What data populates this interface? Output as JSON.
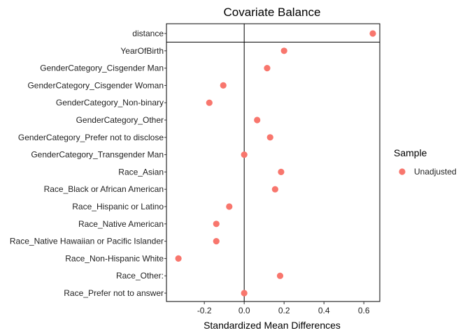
{
  "chart_data": {
    "type": "scatter",
    "title": "Covariate Balance",
    "xlabel": "Standardized Mean Differences",
    "ylabel": "",
    "xlim": [
      -0.39,
      0.68
    ],
    "xticks": [
      -0.2,
      0.0,
      0.2,
      0.4,
      0.6
    ],
    "xtick_labels": [
      "-0.2",
      "0.0",
      "0.2",
      "0.4",
      "0.6"
    ],
    "reference_line_x": 0,
    "grid": false,
    "legend": {
      "title": "Sample",
      "placement": "right",
      "entries": [
        {
          "label": "Unadjusted",
          "color": "#F8766D"
        }
      ]
    },
    "series": [
      {
        "name": "Unadjusted",
        "color": "#F8766D",
        "points": [
          {
            "category": "distance",
            "value": 0.645
          },
          {
            "category": "YearOfBirth",
            "value": 0.2
          },
          {
            "category": "GenderCategory_Cisgender Man",
            "value": 0.115
          },
          {
            "category": "GenderCategory_Cisgender Woman",
            "value": -0.105
          },
          {
            "category": "GenderCategory_Non-binary",
            "value": -0.175
          },
          {
            "category": "GenderCategory_Other",
            "value": 0.065
          },
          {
            "category": "GenderCategory_Prefer not to disclose",
            "value": 0.13
          },
          {
            "category": "GenderCategory_Transgender Man",
            "value": 0.0
          },
          {
            "category": "Race_Asian",
            "value": 0.185
          },
          {
            "category": "Race_Black or African American",
            "value": 0.155
          },
          {
            "category": "Race_Hispanic or Latino",
            "value": -0.075
          },
          {
            "category": "Race_Native American",
            "value": -0.14
          },
          {
            "category": "Race_Native Hawaiian or Pacific Islander",
            "value": -0.14
          },
          {
            "category": "Race_Non-Hispanic White",
            "value": -0.33
          },
          {
            "category": "Race_Other:",
            "value": 0.18
          },
          {
            "category": "Race_Prefer not to answer",
            "value": 0.0
          }
        ]
      }
    ],
    "separator_after_category": "distance"
  }
}
